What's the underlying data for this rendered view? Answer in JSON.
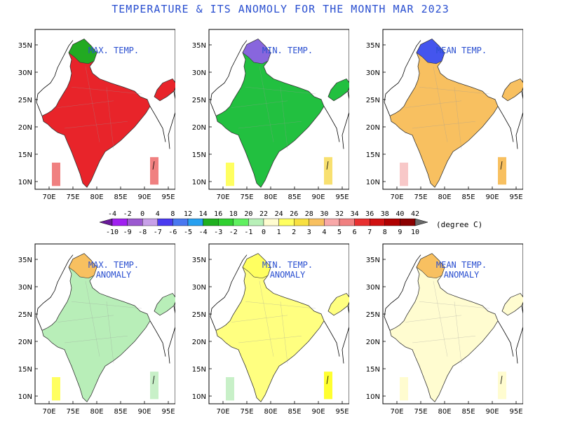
{
  "title": "TEMPERATURE & ITS   ANOMOLY FOR THE MONTH MAR 2023",
  "axes": {
    "x_ticks": [
      "70E",
      "75E",
      "80E",
      "85E",
      "90E",
      "95E"
    ],
    "y_ticks": [
      "35N",
      "30N",
      "25N",
      "20N",
      "15N",
      "10N"
    ]
  },
  "panels": [
    {
      "id": "max",
      "label_lines": [
        "MAX. TEMP."
      ],
      "palette": "actual",
      "dominant": "#e8242a",
      "north": "#22aa22",
      "islands": "#f08080",
      "andaman": "#f08080"
    },
    {
      "id": "min",
      "label_lines": [
        "MIN. TEMP."
      ],
      "palette": "actual",
      "dominant": "#22c040",
      "north": "#8866dd",
      "islands": "#ffff60",
      "andaman": "#f8e070"
    },
    {
      "id": "mean",
      "label_lines": [
        "MEAN TEMP."
      ],
      "palette": "actual",
      "dominant": "#f8c060",
      "north": "#4455ee",
      "islands": "#f8c8c8",
      "andaman": "#f8c060"
    },
    {
      "id": "max_anom",
      "label_lines": [
        "MAX. TEMP.",
        "ANOMALY"
      ],
      "palette": "anomaly",
      "dominant": "#b8eeb8",
      "north": "#f8c060",
      "islands": "#ffff60",
      "andaman": "#c8f0c8"
    },
    {
      "id": "min_anom",
      "label_lines": [
        "MIN. TEMP.",
        "ANOMALY"
      ],
      "palette": "anomaly",
      "dominant": "#ffff80",
      "north": "#ffff60",
      "islands": "#c8f0c8",
      "andaman": "#ffff30"
    },
    {
      "id": "mean_anom",
      "label_lines": [
        "MEAN TEMP.",
        "ANOMALY"
      ],
      "palette": "anomaly",
      "dominant": "#fffcd0",
      "north": "#f8c060",
      "islands": "#fffcd0",
      "andaman": "#fffcd0"
    }
  ],
  "legend": {
    "unit": "(degree C)",
    "top_labels": [
      "-4",
      "-2",
      "0",
      "4",
      "8",
      "12",
      "14",
      "16",
      "18",
      "20",
      "22",
      "24",
      "26",
      "28",
      "30",
      "32",
      "34",
      "36",
      "38",
      "40",
      "42"
    ],
    "bottom_labels": [
      "-10",
      "-9",
      "-8",
      "-7",
      "-6",
      "-5",
      "-4",
      "-3",
      "-2",
      "-1",
      "0",
      "1",
      "2",
      "3",
      "4",
      "5",
      "6",
      "7",
      "8",
      "9",
      "10"
    ],
    "colors": [
      "#a020f0",
      "#9b59d0",
      "#c8a0e8",
      "#4a3af0",
      "#4a78f0",
      "#28a0f0",
      "#20b020",
      "#30d030",
      "#60f060",
      "#b8f0b8",
      "#fffcd0",
      "#ffff60",
      "#f8e040",
      "#f8c060",
      "#f8a8a8",
      "#f08080",
      "#e83030",
      "#d01010",
      "#b00000",
      "#8a0000"
    ]
  }
}
